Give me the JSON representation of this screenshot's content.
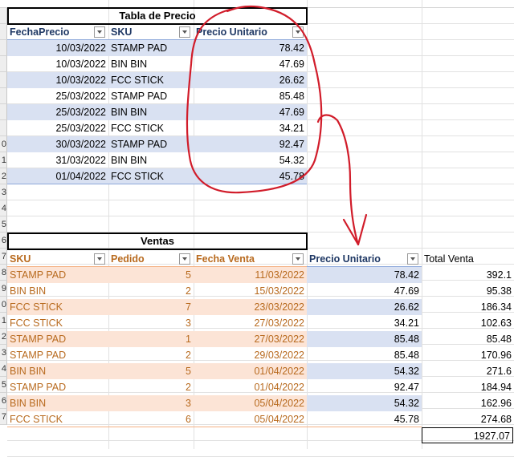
{
  "row_numbers": [
    "0",
    "1",
    "2",
    "3",
    "4",
    "5",
    "6",
    "7",
    "8",
    "9",
    "0",
    "1",
    "2",
    "3",
    "4",
    "5",
    "6",
    "7"
  ],
  "precio_table": {
    "title": "Tabla de Precio",
    "headers": [
      "FechaPrecio",
      "SKU",
      "Precio Unitario"
    ],
    "rows": [
      [
        "10/03/2022",
        "STAMP PAD",
        "78.42"
      ],
      [
        "10/03/2022",
        "BIN BIN",
        "47.69"
      ],
      [
        "10/03/2022",
        "FCC STICK",
        "26.62"
      ],
      [
        "25/03/2022",
        "STAMP PAD",
        "85.48"
      ],
      [
        "25/03/2022",
        "BIN BIN",
        "47.69"
      ],
      [
        "25/03/2022",
        "FCC STICK",
        "34.21"
      ],
      [
        "30/03/2022",
        "STAMP PAD",
        "92.47"
      ],
      [
        "31/03/2022",
        "BIN BIN",
        "54.32"
      ],
      [
        "01/04/2022",
        "FCC STICK",
        "45.78"
      ]
    ]
  },
  "ventas_table": {
    "title": "Ventas",
    "headers": [
      "SKU",
      "Pedido",
      "Fecha Venta",
      "Precio Unitario",
      "Total Venta"
    ],
    "rows": [
      [
        "STAMP PAD",
        "5",
        "11/03/2022",
        "78.42",
        "392.1"
      ],
      [
        "BIN BIN",
        "2",
        "15/03/2022",
        "47.69",
        "95.38"
      ],
      [
        "FCC STICK",
        "7",
        "23/03/2022",
        "26.62",
        "186.34"
      ],
      [
        "FCC STICK",
        "3",
        "27/03/2022",
        "34.21",
        "102.63"
      ],
      [
        "STAMP PAD",
        "1",
        "27/03/2022",
        "85.48",
        "85.48"
      ],
      [
        "STAMP PAD",
        "2",
        "29/03/2022",
        "85.48",
        "170.96"
      ],
      [
        "BIN BIN",
        "5",
        "01/04/2022",
        "54.32",
        "271.6"
      ],
      [
        "STAMP PAD",
        "2",
        "01/04/2022",
        "92.47",
        "184.94"
      ],
      [
        "BIN BIN",
        "3",
        "05/04/2022",
        "54.32",
        "162.96"
      ],
      [
        "FCC STICK",
        "6",
        "05/04/2022",
        "45.78",
        "274.68"
      ]
    ],
    "grand_total": "1927.07"
  },
  "colors": {
    "blue_band": "#d9e1f2",
    "orange_band": "#fce4d6",
    "annotation_red": "#d11c2a"
  }
}
